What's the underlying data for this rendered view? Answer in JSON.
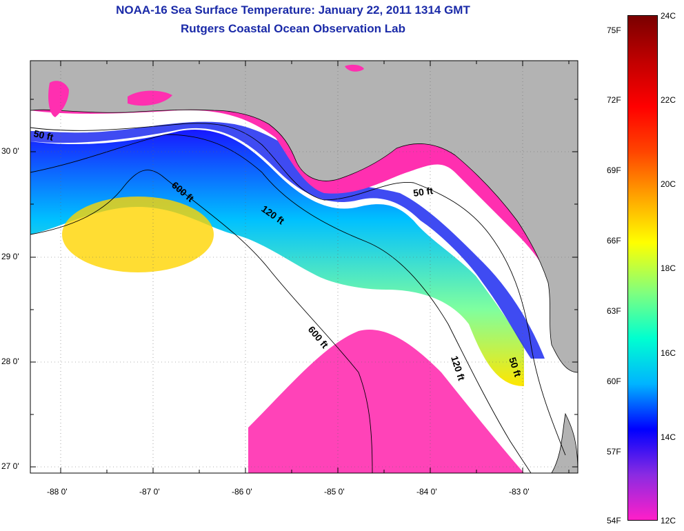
{
  "title": {
    "line1": "NOAA-16 Sea Surface Temperature:  January 22, 2011 1314 GMT",
    "line2": "Rutgers Coastal Ocean Observation Lab"
  },
  "axes": {
    "lon_labels": [
      "-88 0'",
      "-87 0'",
      "-86 0'",
      "-85 0'",
      "-84 0'",
      "-83 0'"
    ],
    "lat_labels": [
      "30 0'",
      "29 0'",
      "28 0'",
      "27 0'"
    ]
  },
  "isobaths": {
    "label_50": "50 ft",
    "label_120": "120 ft",
    "label_600": "600 ft"
  },
  "colorbar": {
    "fahrenheit": [
      "75F",
      "72F",
      "69F",
      "66F",
      "63F",
      "60F",
      "57F",
      "54F"
    ],
    "celsius": [
      "24C",
      "22C",
      "20C",
      "18C",
      "16C",
      "14C",
      "12C"
    ],
    "colors": [
      "#ff1fc8",
      "#8a2be2",
      "#0000ff",
      "#00b4ff",
      "#00ffd0",
      "#7fff7f",
      "#ffff00",
      "#ffa500",
      "#ff4500",
      "#ff0000",
      "#c00000",
      "#7a0000"
    ]
  },
  "colors": {
    "land": "#b3b3b3",
    "cloud": "#ffffff",
    "title": "#1a2aa8"
  }
}
